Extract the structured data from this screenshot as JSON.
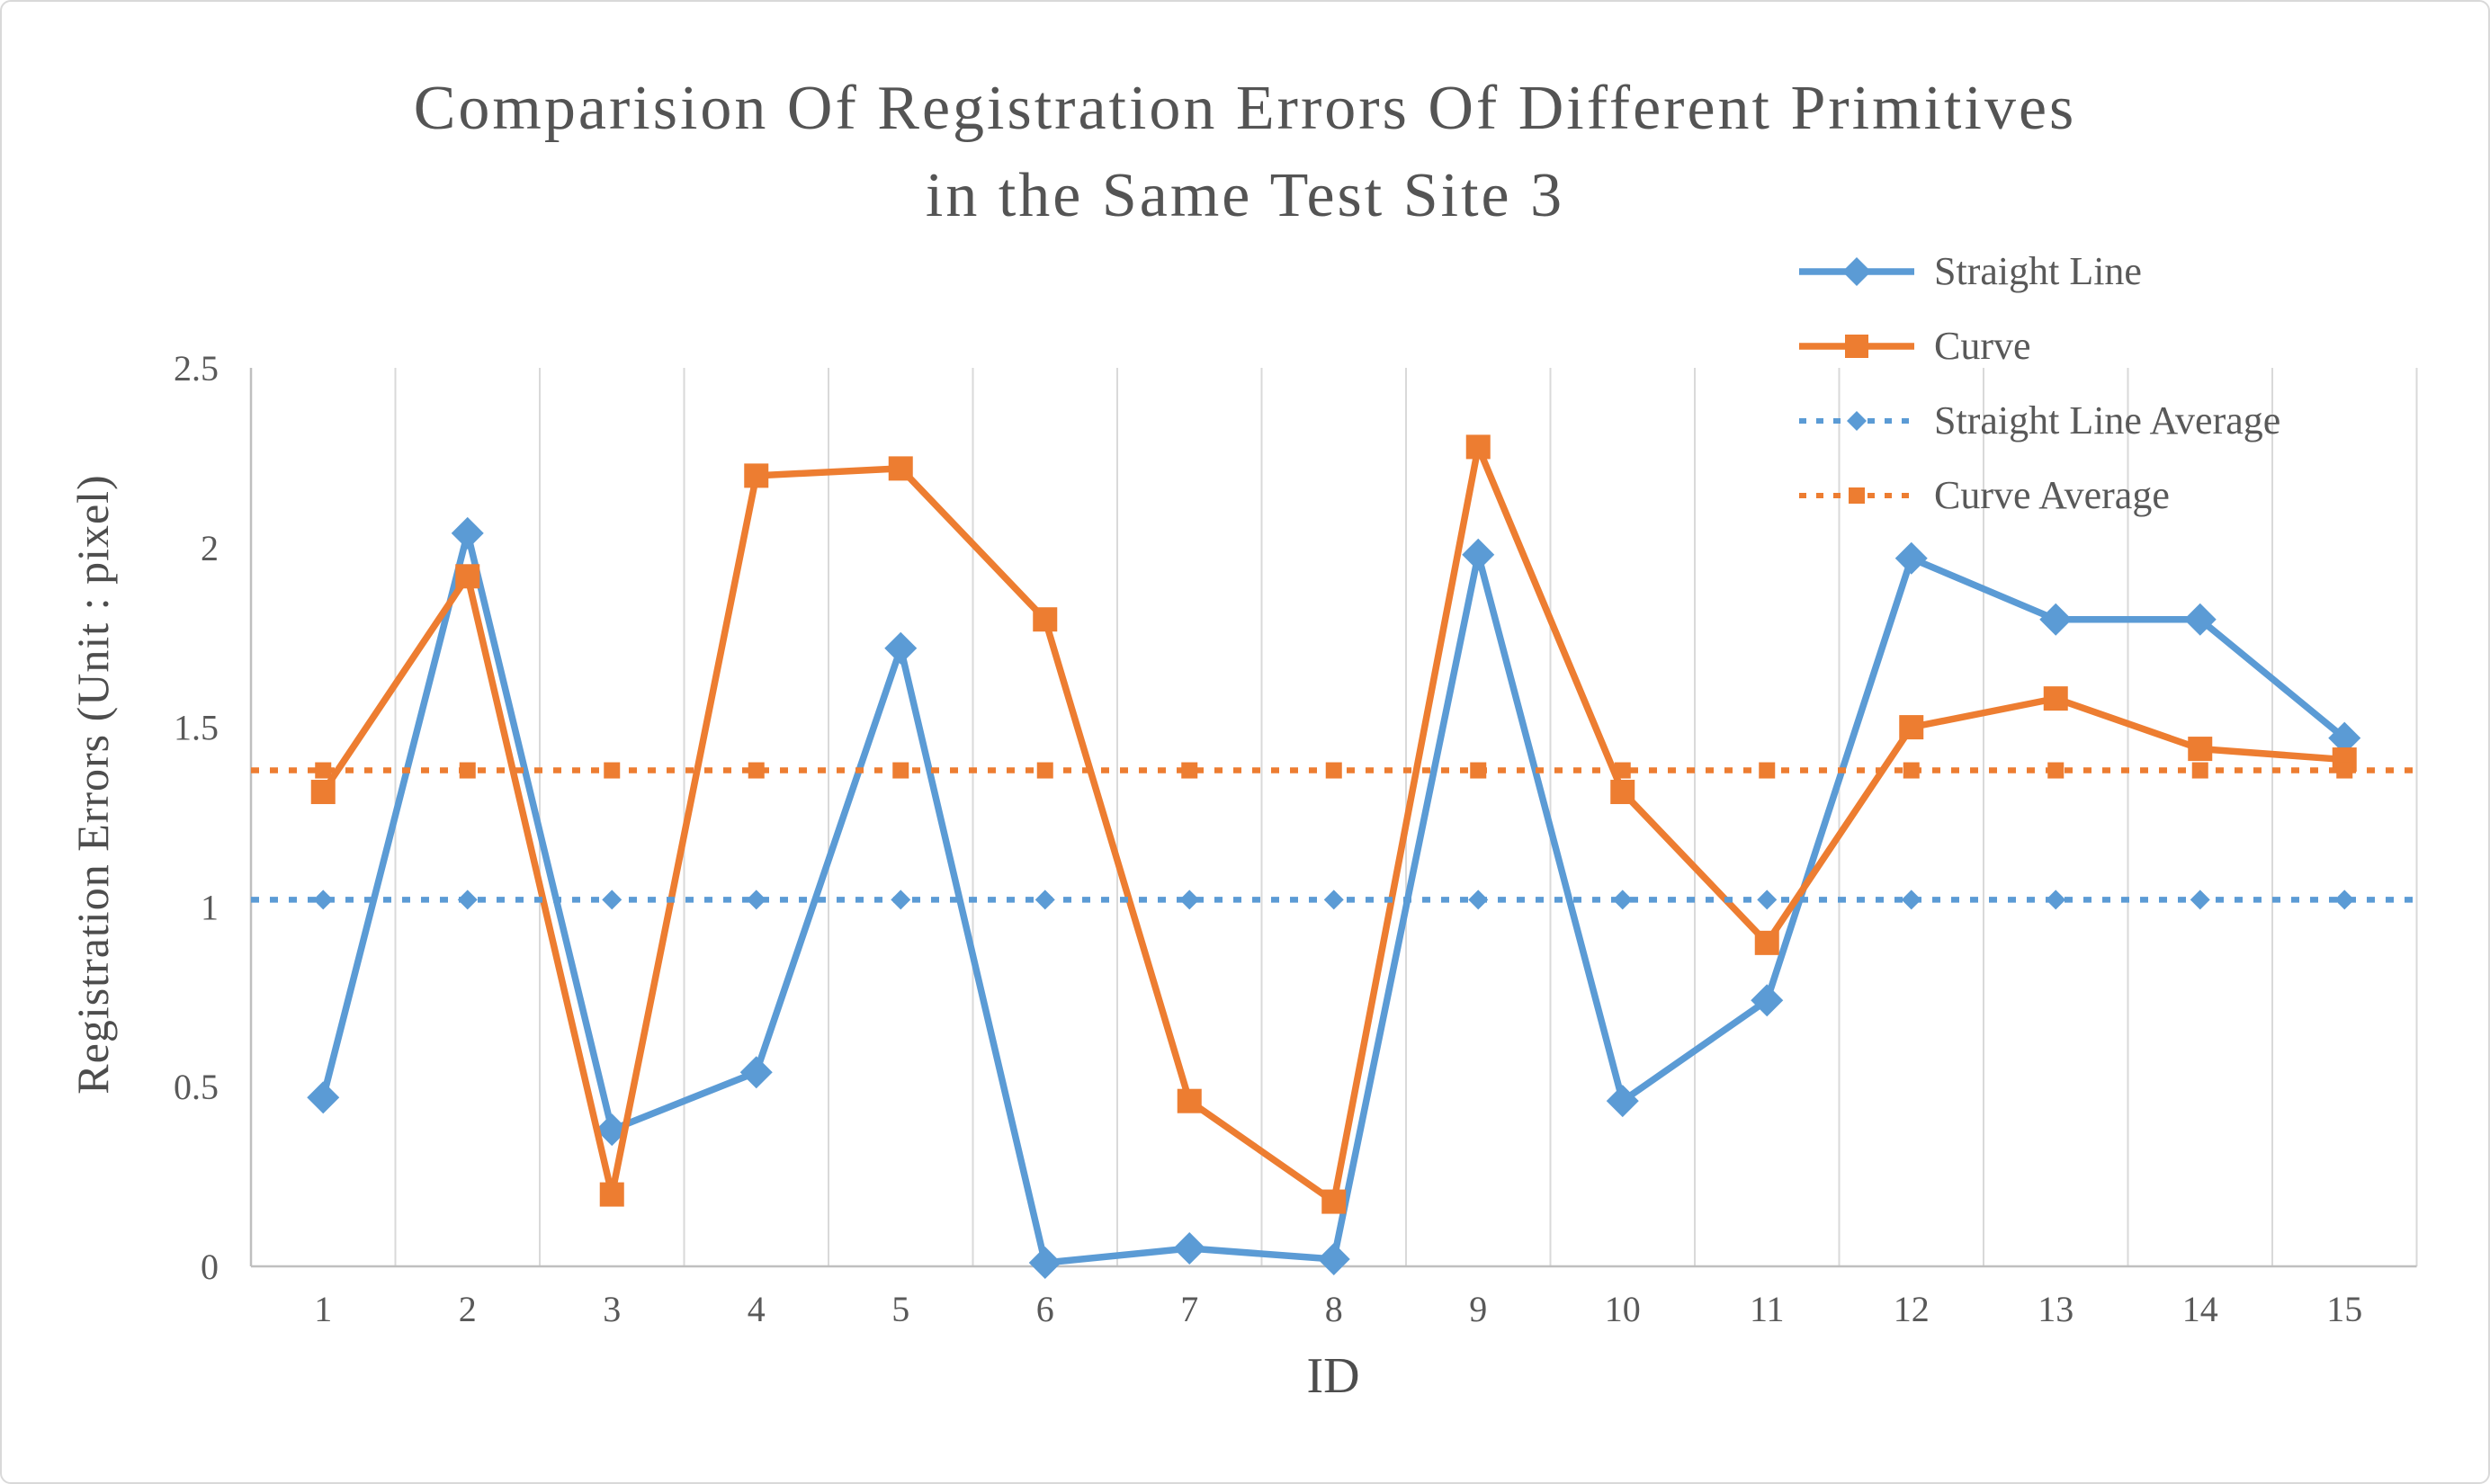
{
  "title": {
    "line1": "Comparision Of Registration Errors Of Different Primitives",
    "line2": "in the Same Test Site 3"
  },
  "colors": {
    "straight_line": "#5B9BD5",
    "curve": "#ED7D31",
    "gridline": "#D9D9D9",
    "axis_line": "#BFBFBF",
    "tick_text": "#595959",
    "title_text": "#545454"
  },
  "chart_data": {
    "type": "line",
    "title": "Comparision Of Registration Errors Of Different Primitives in the Same Test Site 3",
    "xlabel": "ID",
    "ylabel": "Registration Errors (Unit : pixel)",
    "ylim": [
      0,
      2.5
    ],
    "grid": "vertical-only",
    "legend_position": "top-right",
    "y_ticks": [
      {
        "v": 0,
        "label": "0"
      },
      {
        "v": 0.5,
        "label": "0.5"
      },
      {
        "v": 1,
        "label": "1"
      },
      {
        "v": 1.5,
        "label": "1.5"
      },
      {
        "v": 2,
        "label": "2"
      },
      {
        "v": 2.5,
        "label": "2.5"
      }
    ],
    "categories": [
      "1",
      "2",
      "3",
      "4",
      "5",
      "6",
      "7",
      "8",
      "9",
      "10",
      "11",
      "12",
      "13",
      "14",
      "15"
    ],
    "series": [
      {
        "name": "Straight Line",
        "color": "#5B9BD5",
        "marker": "diamond",
        "line_style": "solid",
        "values": [
          0.47,
          2.04,
          0.38,
          0.54,
          1.72,
          0.01,
          0.05,
          0.02,
          1.98,
          0.46,
          0.74,
          1.97,
          1.8,
          1.8,
          1.47
        ]
      },
      {
        "name": "Curve",
        "color": "#ED7D31",
        "marker": "square",
        "line_style": "solid",
        "values": [
          1.32,
          1.92,
          0.2,
          2.2,
          2.22,
          1.8,
          0.46,
          0.18,
          2.28,
          1.32,
          0.9,
          1.5,
          1.58,
          1.44,
          1.41
        ]
      },
      {
        "name": "Straight Line Average",
        "color": "#5B9BD5",
        "marker": "diamond",
        "line_style": "dotted",
        "constant": 1.02
      },
      {
        "name": "Curve Average",
        "color": "#ED7D31",
        "marker": "square",
        "line_style": "dotted",
        "constant": 1.38
      }
    ]
  }
}
